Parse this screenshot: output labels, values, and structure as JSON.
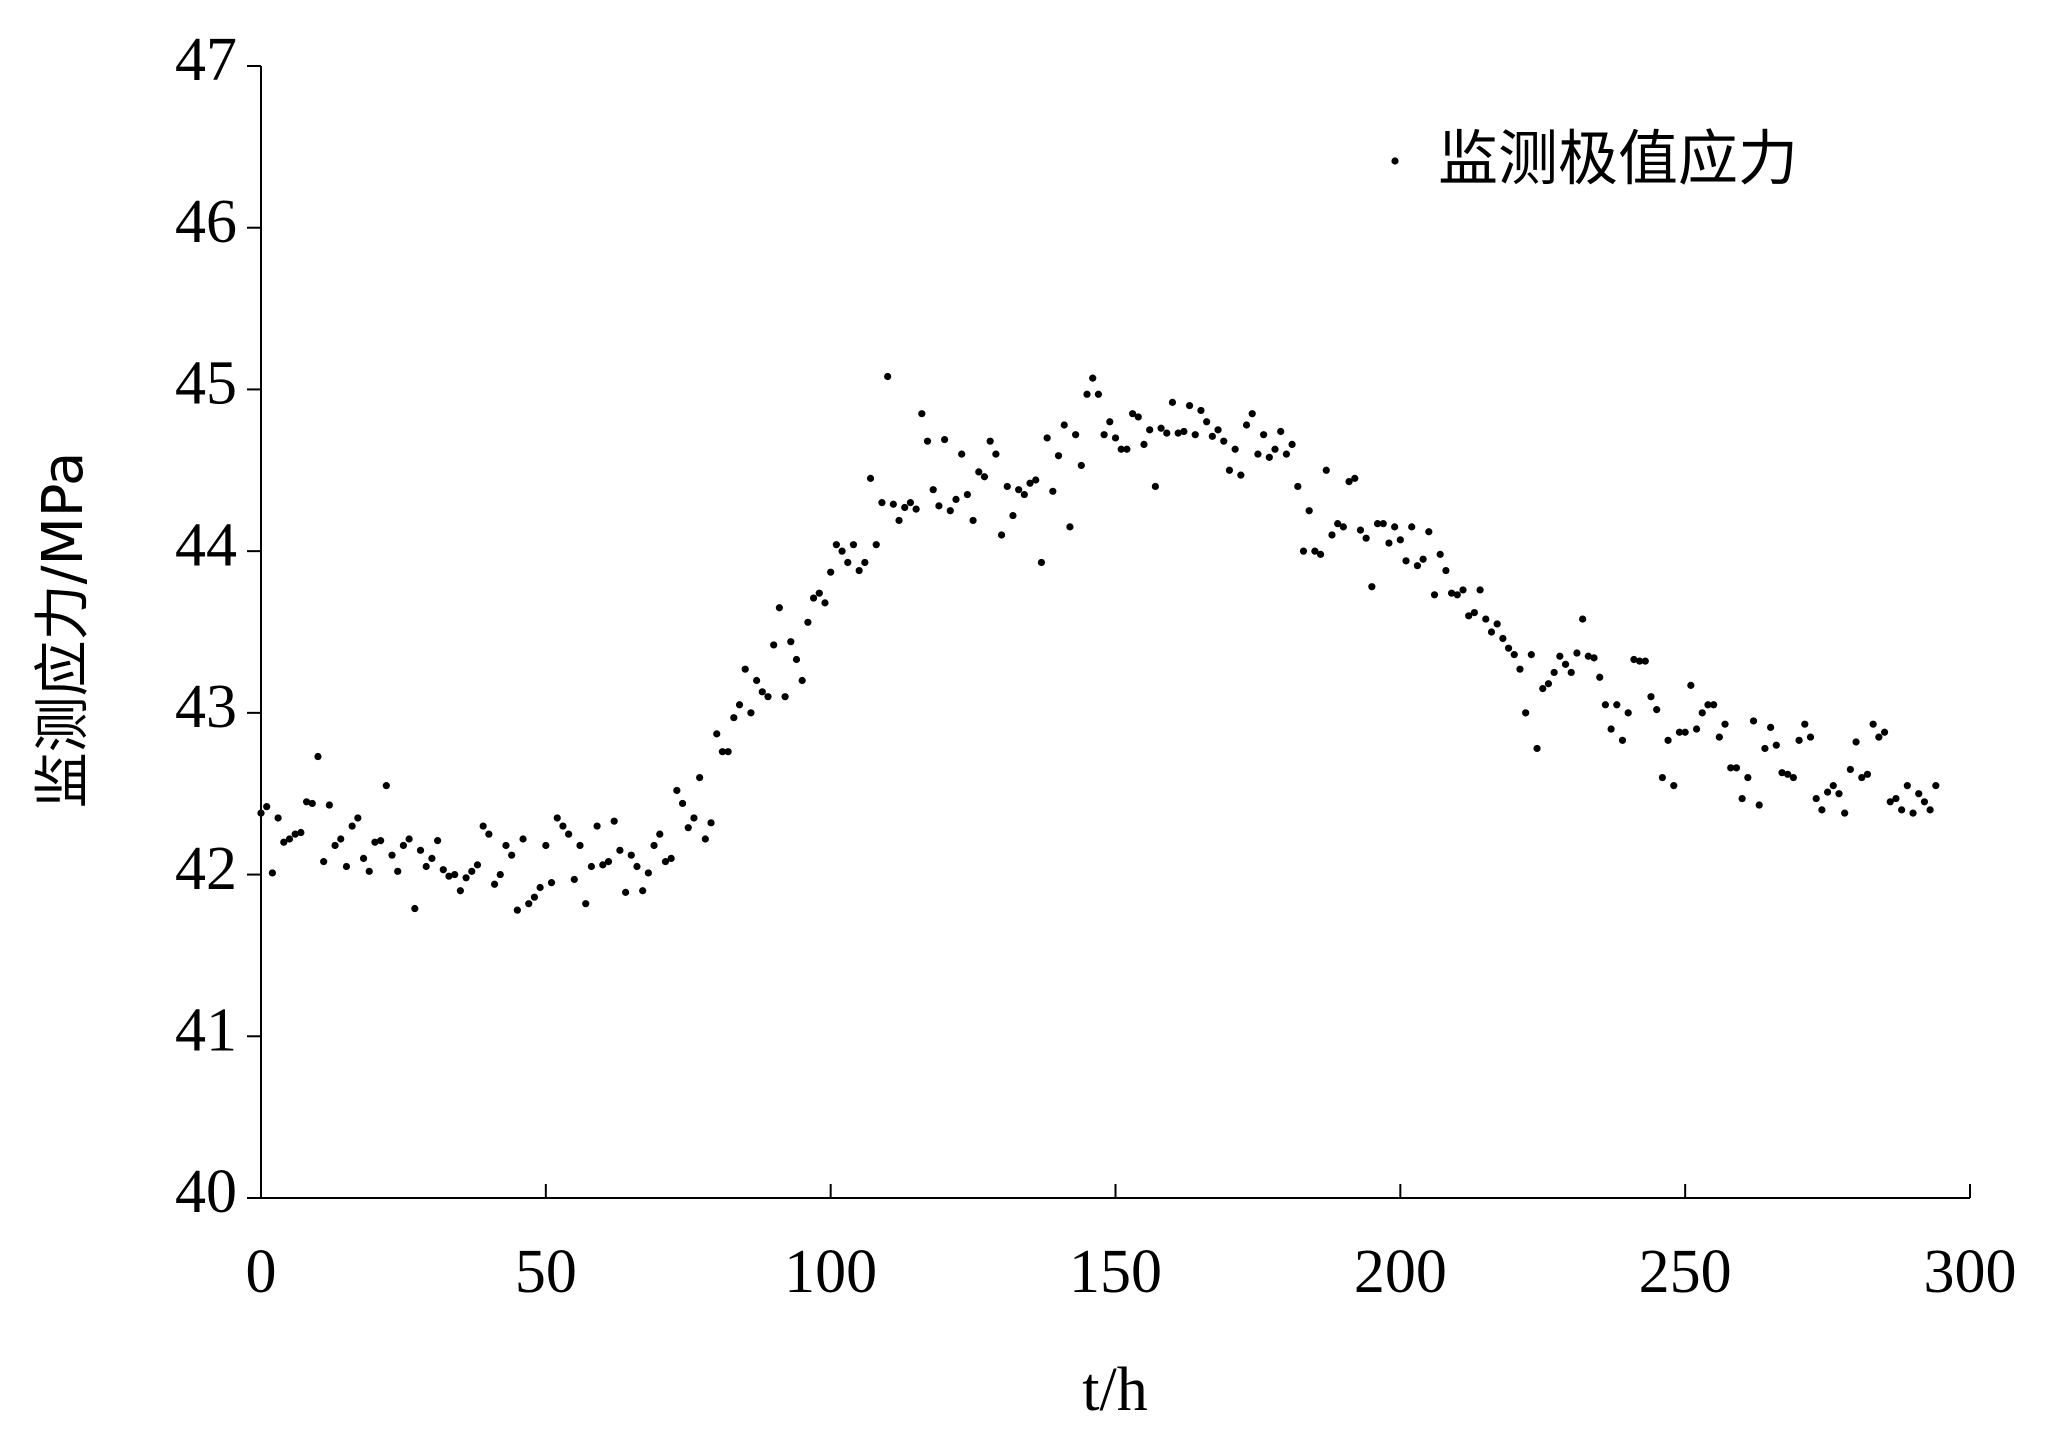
{
  "chart_data": {
    "type": "scatter",
    "xlabel": "t/h",
    "ylabel": "监测应力/MPa",
    "xlim": [
      0,
      300
    ],
    "ylim": [
      40,
      47
    ],
    "xticks": [
      0,
      50,
      100,
      150,
      200,
      250,
      300
    ],
    "yticks": [
      40,
      41,
      42,
      43,
      44,
      45,
      46,
      47
    ],
    "legend": "upper right",
    "grid": false,
    "series": [
      {
        "name": "监测极值应力",
        "color": "#000000",
        "x": [
          0,
          1,
          2,
          3,
          4,
          5,
          6,
          7,
          8,
          9,
          10,
          11,
          12,
          13,
          14,
          15,
          16,
          17,
          18,
          19,
          20,
          21,
          22,
          23,
          24,
          25,
          26,
          27,
          28,
          29,
          30,
          31,
          32,
          33,
          34,
          35,
          36,
          37,
          38,
          39,
          40,
          41,
          42,
          43,
          44,
          45,
          46,
          47,
          48,
          49,
          50,
          51,
          52,
          53,
          54,
          55,
          56,
          57,
          58,
          59,
          60,
          61,
          62,
          63,
          64,
          65,
          66,
          67,
          68,
          69,
          70,
          71,
          72,
          73,
          74,
          75,
          76,
          77,
          78,
          79,
          80,
          81,
          82,
          83,
          84,
          85,
          86,
          87,
          88,
          89,
          90,
          91,
          92,
          93,
          94,
          95,
          96,
          97,
          98,
          99,
          100,
          101,
          102,
          103,
          104,
          105,
          106,
          107,
          108,
          109,
          110,
          111,
          112,
          113,
          114,
          115,
          116,
          117,
          118,
          119,
          120,
          121,
          122,
          123,
          124,
          125,
          126,
          127,
          128,
          129,
          130,
          131,
          132,
          133,
          134,
          135,
          136,
          137,
          138,
          139,
          140,
          141,
          142,
          143,
          144,
          145,
          146,
          147,
          148,
          149,
          150,
          151,
          152,
          153,
          154,
          155,
          156,
          157,
          158,
          159,
          160,
          161,
          162,
          163,
          164,
          165,
          166,
          167,
          168,
          169,
          170,
          171,
          172,
          173,
          174,
          175,
          176,
          177,
          178,
          179,
          180,
          181,
          182,
          183,
          184,
          185,
          186,
          187,
          188,
          189,
          190,
          191,
          192,
          193,
          194,
          195,
          196,
          197,
          198,
          199,
          200,
          201,
          202,
          203,
          204,
          205,
          206,
          207,
          208,
          209,
          210,
          211,
          212,
          213,
          214,
          215,
          216,
          217,
          218,
          219,
          220,
          221,
          222,
          223,
          224,
          225,
          226,
          227,
          228,
          229,
          230,
          231,
          232,
          233,
          234,
          235,
          236,
          237,
          238,
          239,
          240,
          241,
          242,
          243,
          244,
          245,
          246,
          247,
          248,
          249,
          250,
          251,
          252,
          253,
          254,
          255,
          256,
          257,
          258,
          259,
          260,
          261,
          262,
          263,
          264,
          265,
          266,
          267,
          268,
          269,
          270,
          271,
          272,
          273,
          274,
          275,
          276,
          277,
          278,
          279,
          280,
          281,
          282,
          283,
          284,
          285,
          286,
          287,
          288,
          289,
          290,
          291,
          292,
          293,
          294
        ],
        "values": [
          42.38,
          42.42,
          42.01,
          42.35,
          42.2,
          42.22,
          42.25,
          42.26,
          42.45,
          42.44,
          42.73,
          42.08,
          42.43,
          42.18,
          42.22,
          42.05,
          42.3,
          42.35,
          42.1,
          42.02,
          42.2,
          42.21,
          42.55,
          42.12,
          42.02,
          42.18,
          42.22,
          41.79,
          42.15,
          42.05,
          42.1,
          42.21,
          42.03,
          41.99,
          42.0,
          41.9,
          41.98,
          42.02,
          42.06,
          42.3,
          42.25,
          41.94,
          42.0,
          42.18,
          42.12,
          41.78,
          42.22,
          41.82,
          41.86,
          41.92,
          42.18,
          41.95,
          42.35,
          42.3,
          42.25,
          41.97,
          42.18,
          41.82,
          42.05,
          42.3,
          42.06,
          42.08,
          42.33,
          42.15,
          41.89,
          42.12,
          42.05,
          41.9,
          42.01,
          42.18,
          42.25,
          42.08,
          42.1,
          42.52,
          42.44,
          42.29,
          42.35,
          42.6,
          42.22,
          42.32,
          42.87,
          42.76,
          42.76,
          42.97,
          43.05,
          43.27,
          43.0,
          43.2,
          43.13,
          43.1,
          43.42,
          43.65,
          43.1,
          43.44,
          43.33,
          43.2,
          43.56,
          43.71,
          43.74,
          43.68,
          43.87,
          44.04,
          44.0,
          43.93,
          44.04,
          43.88,
          43.93,
          44.45,
          44.04,
          44.3,
          45.08,
          44.29,
          44.19,
          44.27,
          44.3,
          44.26,
          44.85,
          44.68,
          44.38,
          44.28,
          44.69,
          44.25,
          44.32,
          44.6,
          44.35,
          44.19,
          44.49,
          44.46,
          44.68,
          44.6,
          44.1,
          44.4,
          44.22,
          44.38,
          44.35,
          44.42,
          44.44,
          43.93,
          44.7,
          44.37,
          44.59,
          44.78,
          44.15,
          44.72,
          44.53,
          44.97,
          45.07,
          44.97,
          44.72,
          44.8,
          44.7,
          44.63,
          44.63,
          44.85,
          44.83,
          44.66,
          44.75,
          44.4,
          44.76,
          44.73,
          44.92,
          44.73,
          44.74,
          44.9,
          44.72,
          44.87,
          44.8,
          44.71,
          44.75,
          44.68,
          44.5,
          44.63,
          44.47,
          44.78,
          44.85,
          44.6,
          44.72,
          44.58,
          44.63,
          44.74,
          44.6,
          44.66,
          44.4,
          44.0,
          44.25,
          44.0,
          43.98,
          44.5,
          44.1,
          44.17,
          44.15,
          44.43,
          44.45,
          44.13,
          44.08,
          43.78,
          44.17,
          44.17,
          44.05,
          44.15,
          44.07,
          43.94,
          44.15,
          43.91,
          43.95,
          44.12,
          43.73,
          43.98,
          43.88,
          43.74,
          43.73,
          43.76,
          43.6,
          43.62,
          43.76,
          43.58,
          43.5,
          43.55,
          43.46,
          43.4,
          43.36,
          43.27,
          43.0,
          43.36,
          42.78,
          43.15,
          43.18,
          43.25,
          43.35,
          43.3,
          43.25,
          43.37,
          43.58,
          43.35,
          43.34,
          43.22,
          43.05,
          42.9,
          43.05,
          42.83,
          43.0,
          43.33,
          43.32,
          43.32,
          43.1,
          43.02,
          42.6,
          42.83,
          42.55,
          42.88,
          42.88,
          43.17,
          42.9,
          43.0,
          43.05,
          43.05,
          42.85,
          42.93,
          42.66,
          42.66,
          42.47,
          42.6,
          42.95,
          42.43,
          42.78,
          42.91,
          42.8,
          42.63,
          42.62,
          42.6,
          42.83,
          42.93,
          42.85,
          42.47,
          42.4,
          42.51,
          42.55,
          42.5,
          42.38,
          42.65,
          42.82,
          42.6,
          42.62,
          42.93,
          42.85,
          42.88,
          42.45,
          42.47,
          42.4,
          42.55,
          42.38,
          42.5,
          42.45,
          42.4,
          42.55
        ]
      }
    ]
  }
}
